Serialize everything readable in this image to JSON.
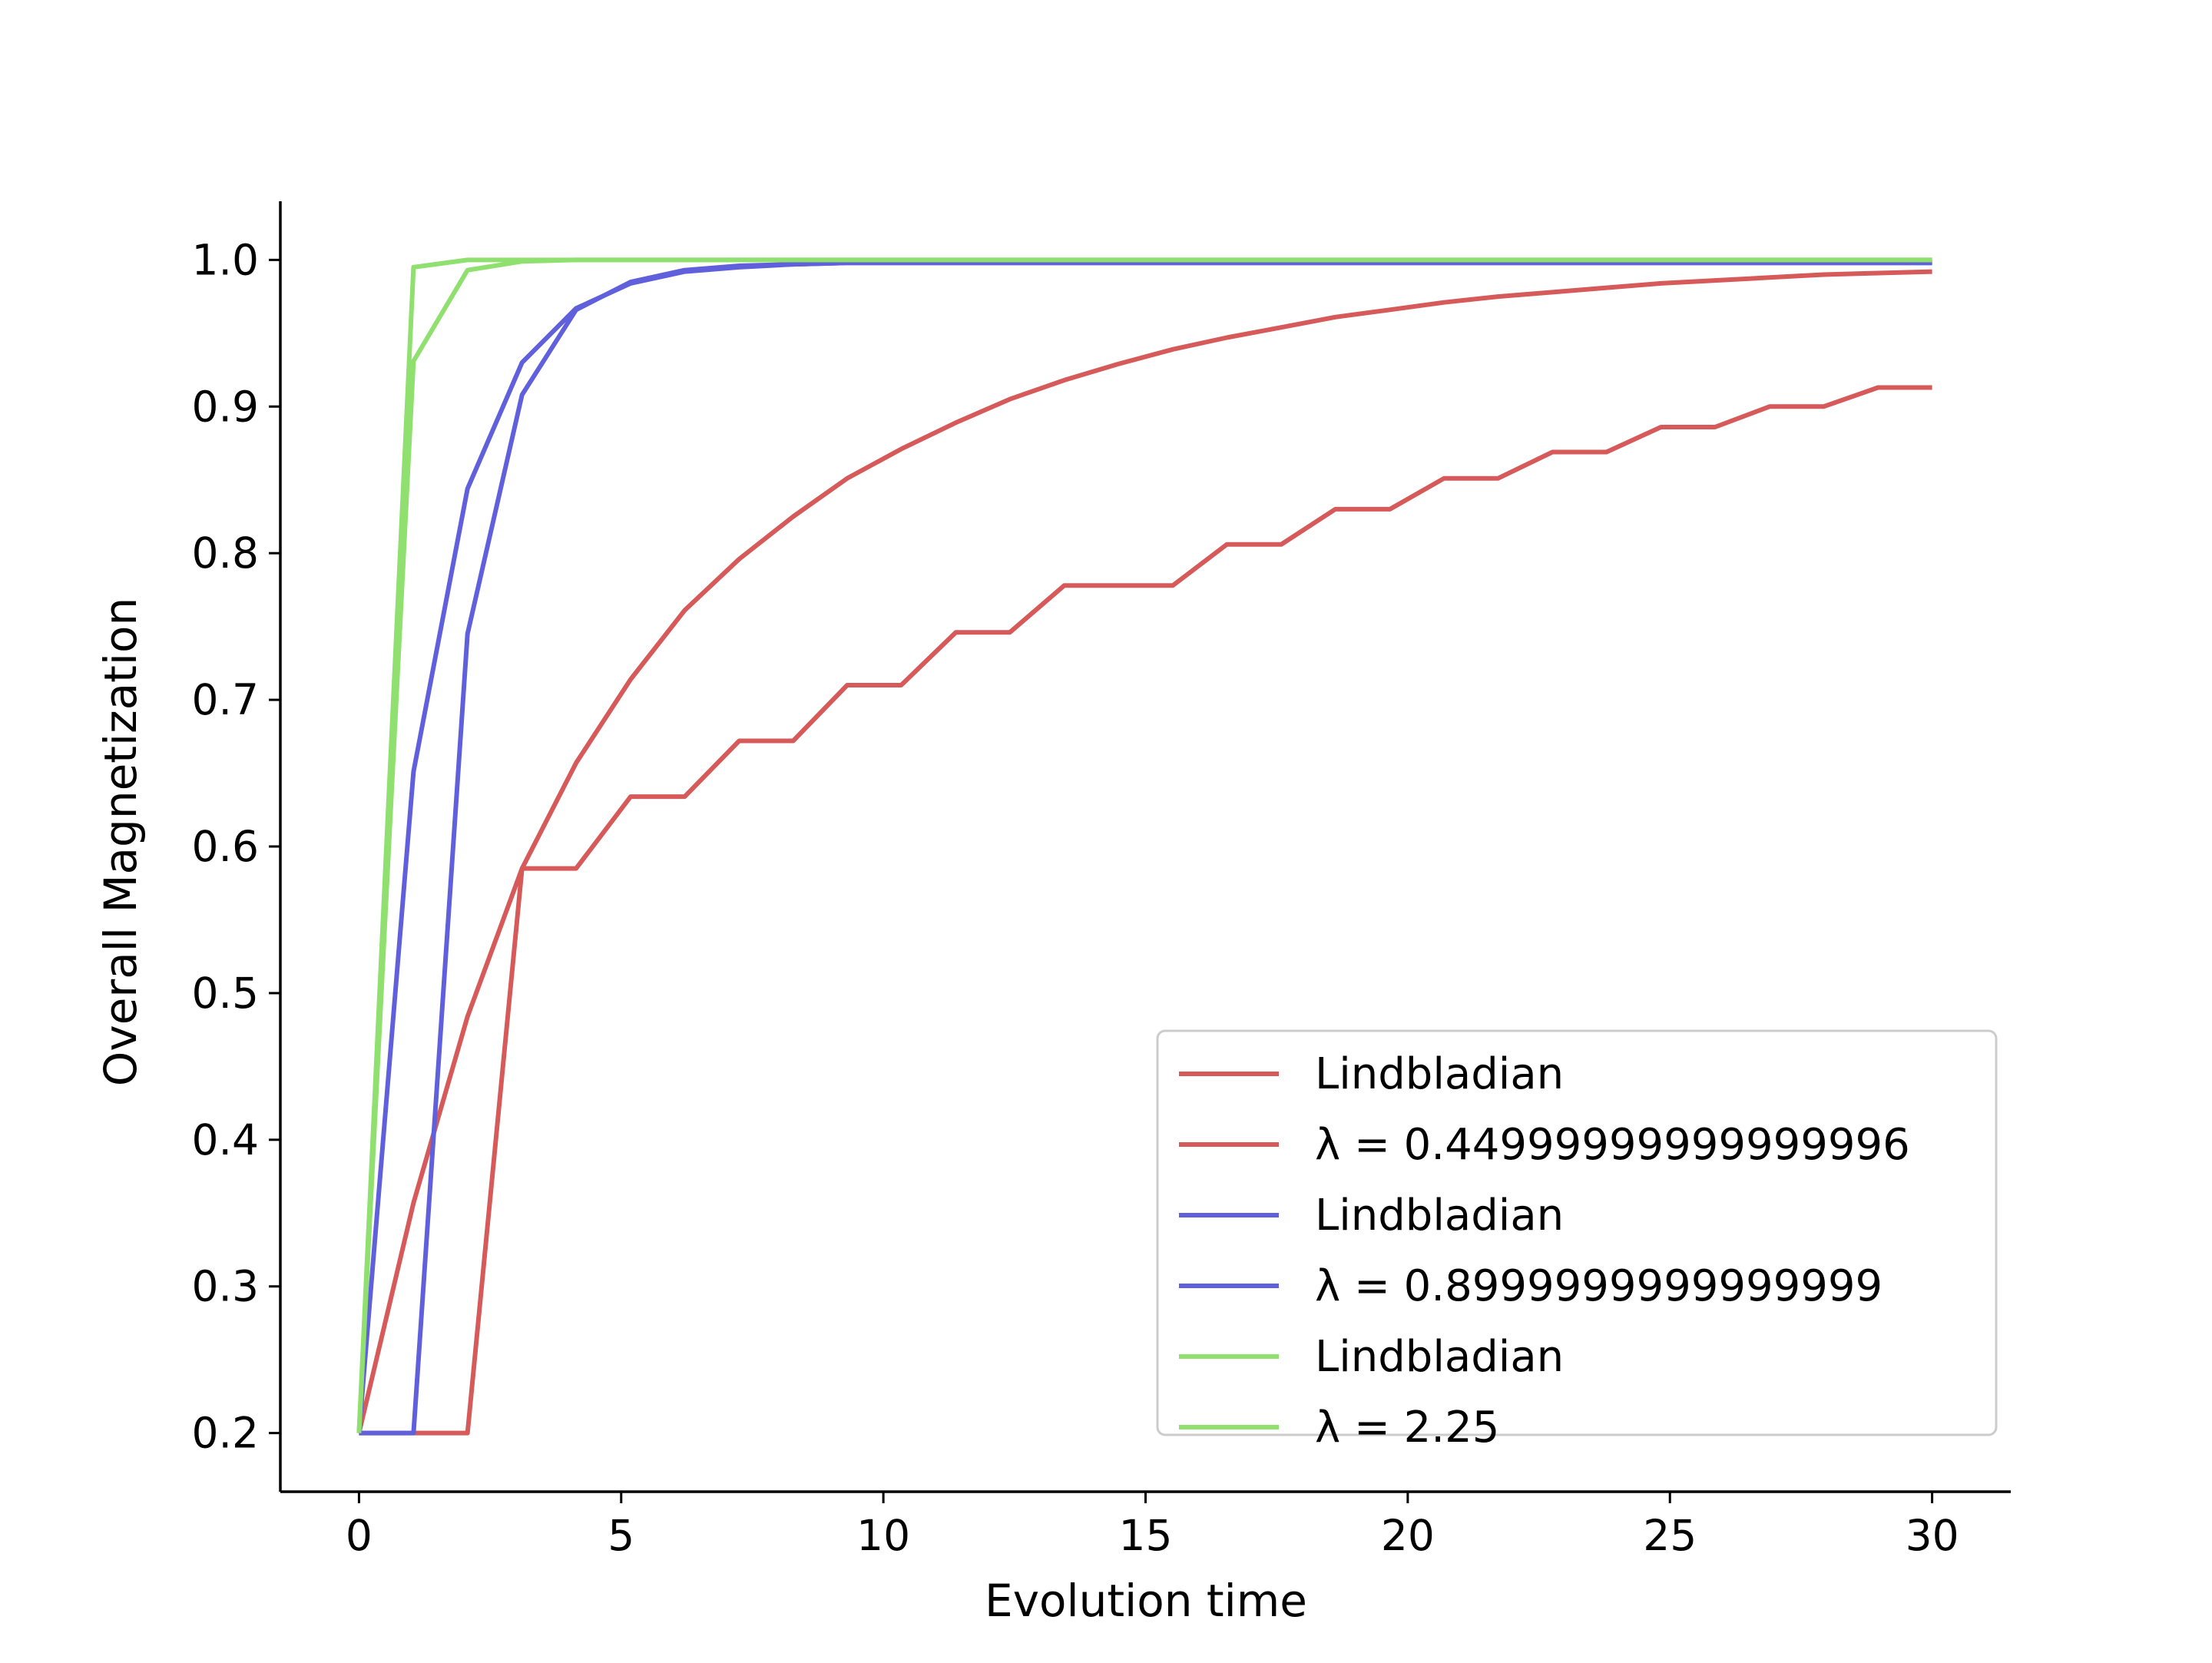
{
  "chart_data": {
    "type": "line",
    "title": "",
    "xlabel": "Evolution time",
    "ylabel": "Overall Magnetization",
    "xlim": [
      -1.5,
      31.5
    ],
    "ylim": [
      0.16,
      1.04
    ],
    "xticks": [
      0,
      5,
      10,
      15,
      20,
      25,
      30
    ],
    "yticks": [
      0.2,
      0.3,
      0.4,
      0.5,
      0.6,
      0.7,
      0.8,
      0.9,
      1.0
    ],
    "ytick_labels": [
      "0.2",
      "0.3",
      "0.4",
      "0.5",
      "0.6",
      "0.7",
      "0.8",
      "0.9",
      "1.0"
    ],
    "grid": false,
    "legend_position": "lower-right",
    "series": [
      {
        "name": "Lindbladian",
        "color": "#d65a5a",
        "x": [
          0,
          1.04,
          2.07,
          3.11,
          4.14,
          5.18,
          6.21,
          7.25,
          8.28,
          9.31,
          10.34,
          11.38,
          12.41,
          13.45,
          14.48,
          15.52,
          16.55,
          17.59,
          18.62,
          19.66,
          20.69,
          21.72,
          22.76,
          23.79,
          24.83,
          25.86,
          26.9,
          27.93,
          28.97,
          30
        ],
        "y": [
          0.2,
          0.357,
          0.484,
          0.585,
          0.657,
          0.714,
          0.761,
          0.796,
          0.825,
          0.851,
          0.871,
          0.889,
          0.905,
          0.918,
          0.929,
          0.939,
          0.947,
          0.954,
          0.961,
          0.966,
          0.971,
          0.975,
          0.978,
          0.981,
          0.984,
          0.986,
          0.988,
          0.99,
          0.991,
          0.992
        ]
      },
      {
        "name": "λ = 0.44999999999999996",
        "color": "#d65a5a",
        "x": [
          0,
          1.04,
          2.07,
          3.11,
          4.14,
          5.18,
          6.21,
          7.25,
          8.28,
          9.31,
          10.34,
          11.38,
          12.41,
          13.45,
          14.48,
          15.52,
          16.55,
          17.59,
          18.62,
          19.66,
          20.69,
          21.72,
          22.76,
          23.79,
          24.83,
          25.86,
          26.9,
          27.93,
          28.97,
          30
        ],
        "y": [
          0.2,
          0.2,
          0.2,
          0.585,
          0.585,
          0.634,
          0.634,
          0.672,
          0.672,
          0.71,
          0.71,
          0.746,
          0.746,
          0.778,
          0.778,
          0.778,
          0.806,
          0.806,
          0.83,
          0.83,
          0.851,
          0.851,
          0.869,
          0.869,
          0.886,
          0.886,
          0.9,
          0.9,
          0.913,
          0.913
        ]
      },
      {
        "name": "Lindbladian",
        "color": "#6060dd",
        "x": [
          0,
          1.04,
          2.07,
          3.11,
          4.14,
          5.18,
          6.21,
          7.25,
          8.28,
          9.31,
          10.34,
          11.38,
          12.41,
          13.45,
          14.48,
          15.52,
          16.55,
          17.59,
          18.62,
          19.66,
          20.69,
          21.72,
          22.76,
          23.79,
          24.83,
          25.86,
          26.9,
          27.93,
          28.97,
          30
        ],
        "y": [
          0.2,
          0.651,
          0.844,
          0.93,
          0.967,
          0.984,
          0.992,
          0.995,
          0.997,
          0.998,
          0.998,
          0.998,
          0.998,
          0.998,
          0.998,
          0.998,
          0.998,
          0.998,
          0.998,
          0.998,
          0.998,
          0.998,
          0.998,
          0.998,
          0.998,
          0.998,
          0.998,
          0.998,
          0.998,
          0.998
        ]
      },
      {
        "name": "λ = 0.8999999999999999",
        "color": "#6060dd",
        "x": [
          0,
          1.04,
          2.07,
          3.11,
          4.14,
          5.18,
          6.21,
          7.25,
          8.28,
          9.31,
          10.34,
          11.38,
          12.41,
          13.45,
          14.48,
          15.52,
          16.55,
          17.59,
          18.62,
          19.66,
          20.69,
          21.72,
          22.76,
          23.79,
          24.83,
          25.86,
          26.9,
          27.93,
          28.97,
          30
        ],
        "y": [
          0.2,
          0.2,
          0.745,
          0.908,
          0.966,
          0.985,
          0.993,
          0.996,
          0.997,
          0.998,
          0.998,
          0.998,
          0.998,
          0.998,
          0.998,
          0.998,
          0.998,
          0.998,
          0.998,
          0.998,
          0.998,
          0.998,
          0.998,
          0.998,
          0.998,
          0.998,
          0.998,
          0.998,
          0.998,
          0.998
        ]
      },
      {
        "name": "Lindbladian",
        "color": "#90e070",
        "x": [
          0,
          1.04,
          2.07,
          3.11,
          4.14,
          5.18,
          6.21,
          7.25,
          8.28,
          9.31,
          10.34,
          11.38,
          12.41,
          13.45,
          14.48,
          15.52,
          16.55,
          17.59,
          18.62,
          19.66,
          20.69,
          21.72,
          22.76,
          23.79,
          24.83,
          25.86,
          26.9,
          27.93,
          28.97,
          30
        ],
        "y": [
          0.2,
          0.931,
          0.993,
          0.999,
          1.0,
          1.0,
          1.0,
          1.0,
          1.0,
          1.0,
          1.0,
          1.0,
          1.0,
          1.0,
          1.0,
          1.0,
          1.0,
          1.0,
          1.0,
          1.0,
          1.0,
          1.0,
          1.0,
          1.0,
          1.0,
          1.0,
          1.0,
          1.0,
          1.0,
          1.0
        ]
      },
      {
        "name": "λ = 2.25",
        "color": "#90e070",
        "x": [
          0,
          1.04,
          2.07,
          3.11,
          4.14,
          5.18,
          6.21,
          7.25,
          8.28,
          9.31,
          10.34,
          11.38,
          12.41,
          13.45,
          14.48,
          15.52,
          16.55,
          17.59,
          18.62,
          19.66,
          20.69,
          21.72,
          22.76,
          23.79,
          24.83,
          25.86,
          26.9,
          27.93,
          28.97,
          30
        ],
        "y": [
          0.2,
          0.995,
          1.0,
          1.0,
          1.0,
          1.0,
          1.0,
          1.0,
          1.0,
          1.0,
          1.0,
          1.0,
          1.0,
          1.0,
          1.0,
          1.0,
          1.0,
          1.0,
          1.0,
          1.0,
          1.0,
          1.0,
          1.0,
          1.0,
          1.0,
          1.0,
          1.0,
          1.0,
          1.0,
          1.0
        ]
      }
    ],
    "legend": {
      "entries": [
        {
          "label": "Lindbladian",
          "color": "#d65a5a"
        },
        {
          "label": "λ = 0.44999999999999996",
          "color": "#d65a5a"
        },
        {
          "label": "Lindbladian",
          "color": "#6060dd"
        },
        {
          "label": "λ = 0.8999999999999999",
          "color": "#6060dd"
        },
        {
          "label": "Lindbladian",
          "color": "#90e070"
        },
        {
          "label": "λ = 2.25",
          "color": "#90e070"
        }
      ]
    }
  }
}
